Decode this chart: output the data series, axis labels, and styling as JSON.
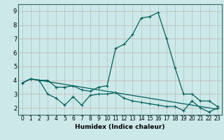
{
  "xlabel": "Humidex (Indice chaleur)",
  "background_color": "#cde8e8",
  "grid_color_h": "#c8b8b8",
  "grid_color_v": "#b8c8c8",
  "line_color": "#006060",
  "ylim": [
    1.5,
    9.5
  ],
  "xlim": [
    -0.5,
    23.5
  ],
  "yticks": [
    2,
    3,
    4,
    5,
    6,
    7,
    8,
    9
  ],
  "xticks": [
    0,
    1,
    2,
    3,
    4,
    5,
    6,
    7,
    8,
    9,
    10,
    11,
    12,
    13,
    14,
    15,
    16,
    17,
    18,
    19,
    20,
    21,
    22,
    23
  ],
  "series1_x": [
    0,
    1,
    2,
    3,
    4,
    5,
    6,
    7,
    8,
    9,
    10,
    11,
    12,
    13,
    14,
    15,
    16,
    17,
    18,
    19,
    20,
    21,
    22,
    23
  ],
  "series1_y": [
    3.8,
    4.1,
    4.0,
    4.0,
    3.5,
    3.5,
    3.6,
    3.3,
    3.2,
    3.5,
    3.6,
    6.3,
    6.6,
    7.3,
    8.5,
    8.6,
    8.9,
    7.0,
    4.9,
    3.0,
    3.0,
    2.5,
    2.5,
    2.1
  ],
  "series2_x": [
    0,
    1,
    2,
    3,
    4,
    5,
    6,
    7,
    8,
    9,
    10,
    11,
    12,
    13,
    14,
    15,
    16,
    17,
    18,
    19,
    20,
    21,
    22,
    23
  ],
  "series2_y": [
    3.8,
    4.1,
    4.0,
    3.0,
    2.7,
    2.2,
    2.8,
    2.2,
    2.9,
    3.0,
    3.0,
    3.1,
    2.7,
    2.5,
    2.4,
    2.3,
    2.2,
    2.1,
    2.1,
    1.8,
    2.5,
    2.0,
    1.7,
    2.0
  ],
  "series3_x": [
    0,
    1,
    2,
    3,
    4,
    5,
    6,
    7,
    8,
    9,
    10,
    11,
    12,
    13,
    14,
    15,
    16,
    17,
    18,
    19,
    20,
    21,
    22,
    23
  ],
  "series3_y": [
    3.8,
    4.1,
    4.0,
    3.9,
    3.8,
    3.7,
    3.6,
    3.5,
    3.4,
    3.3,
    3.2,
    3.1,
    3.0,
    2.9,
    2.8,
    2.7,
    2.6,
    2.5,
    2.4,
    2.3,
    2.2,
    2.1,
    2.0,
    1.9
  ]
}
